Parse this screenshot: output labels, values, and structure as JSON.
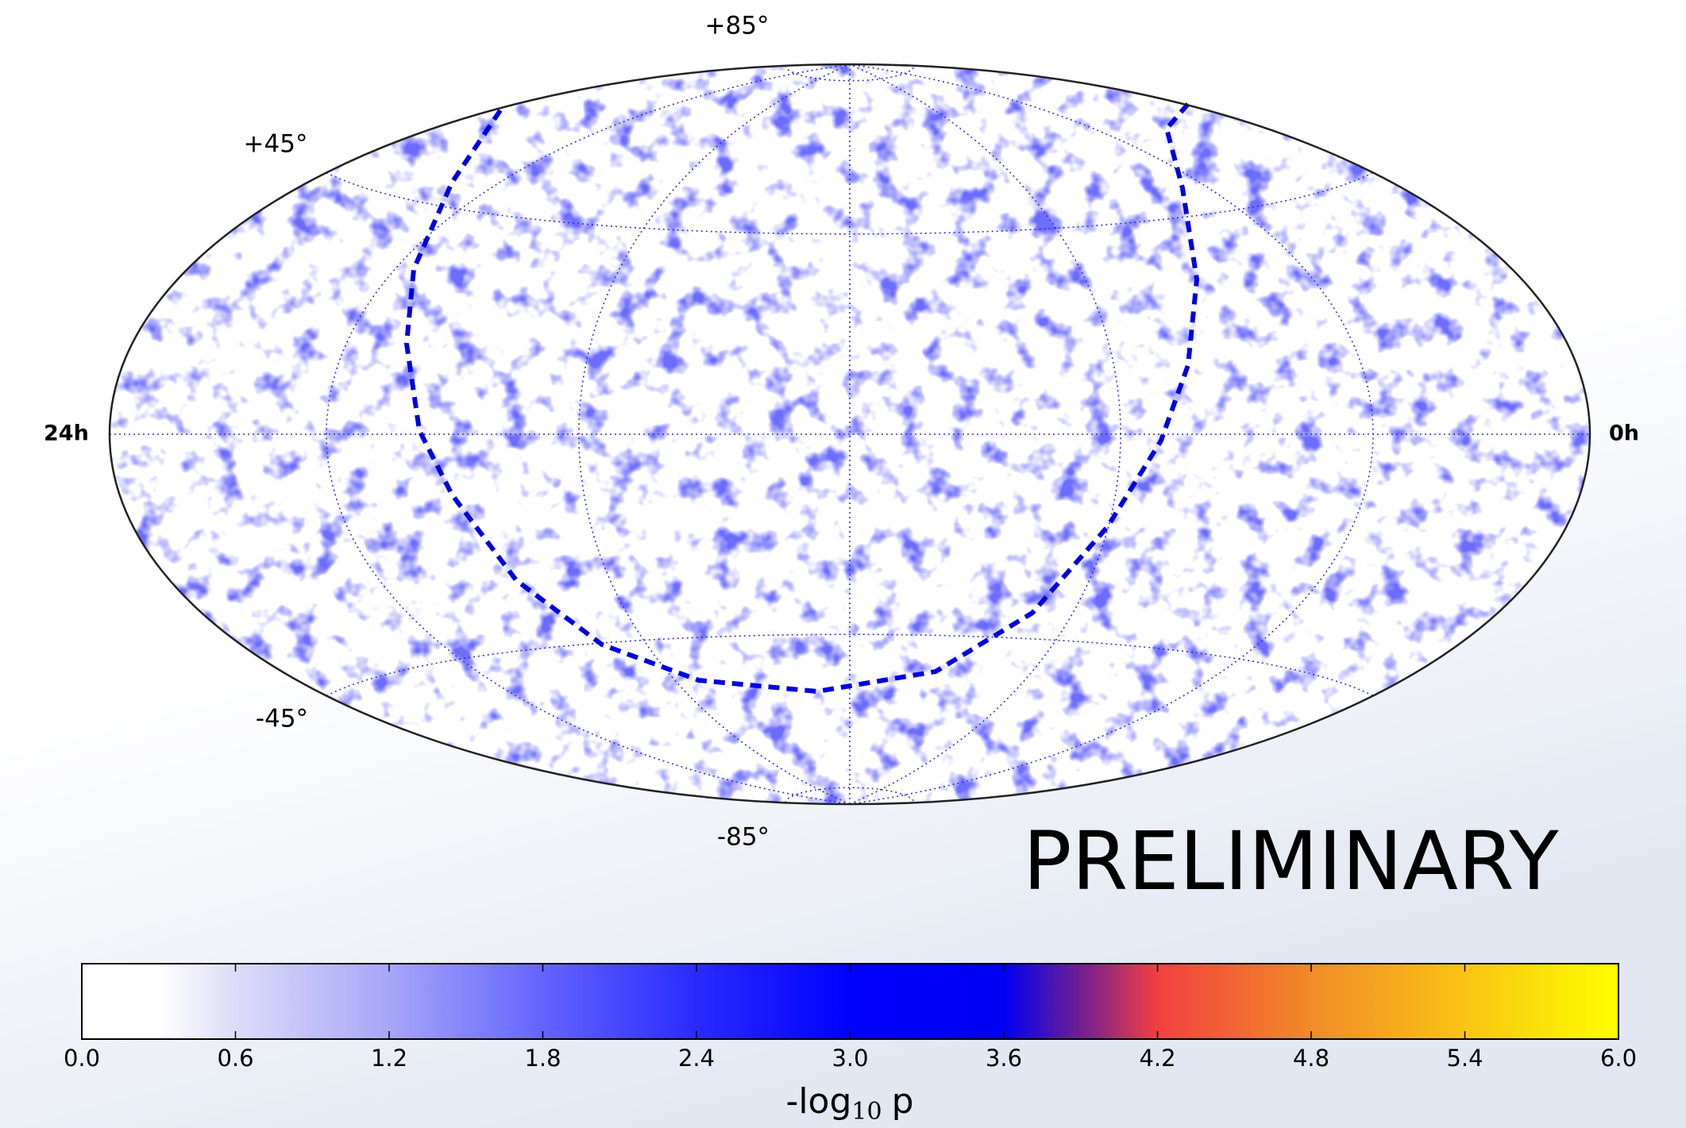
{
  "map": {
    "lat_labels": [
      "+85°",
      "+45°",
      "-45°",
      "-85°"
    ],
    "ra_labels": [
      "24h",
      "0h"
    ],
    "watermark": "PRELIMINARY"
  },
  "colorbar": {
    "lim": [
      0,
      6
    ],
    "ticks": [
      {
        "value": 0,
        "label": "0.0"
      },
      {
        "value": 0.6,
        "label": "0.6"
      },
      {
        "value": 1.2,
        "label": "1.2"
      },
      {
        "value": 1.8,
        "label": "1.8"
      },
      {
        "value": 2.4,
        "label": "2.4"
      },
      {
        "value": 3,
        "label": "3.0"
      },
      {
        "value": 3.6,
        "label": "3.6"
      },
      {
        "value": 4.2,
        "label": "4.2"
      },
      {
        "value": 4.8,
        "label": "4.8"
      },
      {
        "value": 5.4,
        "label": "5.4"
      },
      {
        "value": 6,
        "label": "6.0"
      }
    ],
    "label": {
      "main": "-log",
      "sub": "10",
      "tail": "p"
    },
    "stops": [
      {
        "value": 0,
        "color": "#ffffff"
      },
      {
        "value": 0.3,
        "color": "#ffffff"
      },
      {
        "value": 0.6,
        "color": "#dcdcf8"
      },
      {
        "value": 1.2,
        "color": "#a6a6f8"
      },
      {
        "value": 1.8,
        "color": "#6464ff"
      },
      {
        "value": 2.4,
        "color": "#2a2aff"
      },
      {
        "value": 3,
        "color": "#0000ff"
      },
      {
        "value": 3.6,
        "color": "#0000f2"
      },
      {
        "value": 3.9,
        "color": "#702090"
      },
      {
        "value": 4.2,
        "color": "#f24040"
      },
      {
        "value": 4.8,
        "color": "#f28a28"
      },
      {
        "value": 6,
        "color": "#ffff00"
      }
    ]
  }
}
